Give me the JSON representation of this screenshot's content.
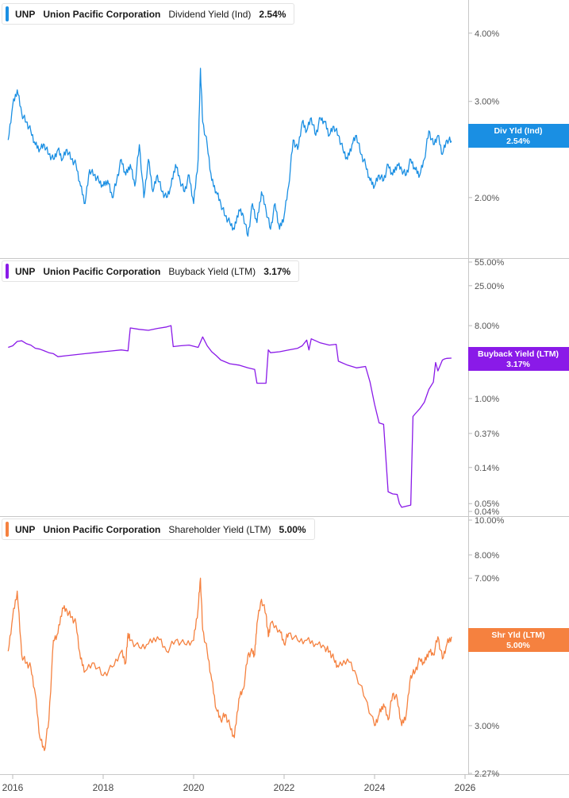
{
  "panels": [
    {
      "ticker": "UNP",
      "company": "Union Pacific Corporation",
      "metric": "Dividend Yield (Ind)",
      "value": "2.54%",
      "badge_label": "Div Yld (Ind)",
      "badge_value": "2.54%",
      "color": "#1a8fe3"
    },
    {
      "ticker": "UNP",
      "company": "Union Pacific Corporation",
      "metric": "Buyback Yield (LTM)",
      "value": "3.17%",
      "badge_label": "Buyback Yield (LTM)",
      "badge_value": "3.17%",
      "color": "#8a1ae8"
    },
    {
      "ticker": "UNP",
      "company": "Union Pacific Corporation",
      "metric": "Shareholder Yield (LTM)",
      "value": "5.00%",
      "badge_label": "Shr Yld (LTM)",
      "badge_value": "5.00%",
      "color": "#f5813f"
    }
  ],
  "x_axis": {
    "labels": [
      "2016",
      "2018",
      "2020",
      "2022",
      "2024",
      "2026"
    ]
  },
  "chart_data": [
    {
      "type": "line",
      "series": [
        {
          "name": "Dividend Yield (Ind)",
          "x": [
            2015.9,
            2016.0,
            2016.1,
            2016.2,
            2016.3,
            2016.4,
            2016.5,
            2016.6,
            2016.7,
            2016.8,
            2016.9,
            2017.0,
            2017.1,
            2017.2,
            2017.3,
            2017.4,
            2017.5,
            2017.6,
            2017.7,
            2017.8,
            2017.9,
            2018.0,
            2018.1,
            2018.2,
            2018.3,
            2018.4,
            2018.5,
            2018.6,
            2018.7,
            2018.8,
            2018.9,
            2019.0,
            2019.1,
            2019.2,
            2019.3,
            2019.4,
            2019.5,
            2019.6,
            2019.7,
            2019.8,
            2019.9,
            2020.0,
            2020.1,
            2020.15,
            2020.2,
            2020.3,
            2020.4,
            2020.5,
            2020.6,
            2020.7,
            2020.8,
            2020.9,
            2021.0,
            2021.1,
            2021.2,
            2021.3,
            2021.4,
            2021.5,
            2021.6,
            2021.7,
            2021.8,
            2021.9,
            2022.0,
            2022.1,
            2022.2,
            2022.3,
            2022.4,
            2022.5,
            2022.6,
            2022.7,
            2022.8,
            2022.9,
            2023.0,
            2023.1,
            2023.2,
            2023.3,
            2023.4,
            2023.5,
            2023.6,
            2023.7,
            2023.8,
            2023.9,
            2024.0,
            2024.1,
            2024.2,
            2024.3,
            2024.4,
            2024.5,
            2024.6,
            2024.7,
            2024.8,
            2024.9,
            2025.0,
            2025.1,
            2025.2,
            2025.3,
            2025.4,
            2025.5,
            2025.6,
            2025.7
          ],
          "y": [
            2.55,
            2.95,
            3.15,
            2.85,
            2.75,
            2.65,
            2.5,
            2.45,
            2.5,
            2.4,
            2.35,
            2.45,
            2.35,
            2.45,
            2.35,
            2.3,
            2.1,
            1.95,
            2.25,
            2.2,
            2.15,
            2.1,
            2.15,
            2.0,
            2.15,
            2.35,
            2.2,
            2.3,
            2.1,
            2.5,
            2.0,
            2.35,
            2.05,
            2.2,
            2.05,
            2.0,
            2.1,
            2.3,
            2.15,
            2.05,
            2.2,
            1.95,
            2.35,
            3.45,
            2.75,
            2.5,
            2.15,
            2.05,
            1.95,
            1.85,
            1.8,
            1.75,
            1.9,
            1.85,
            1.7,
            1.95,
            1.8,
            2.05,
            1.9,
            1.75,
            1.95,
            1.75,
            1.85,
            2.1,
            2.55,
            2.45,
            2.75,
            2.65,
            2.8,
            2.6,
            2.8,
            2.75,
            2.6,
            2.7,
            2.6,
            2.45,
            2.35,
            2.5,
            2.6,
            2.4,
            2.3,
            2.15,
            2.1,
            2.2,
            2.15,
            2.3,
            2.2,
            2.3,
            2.25,
            2.2,
            2.35,
            2.25,
            2.2,
            2.35,
            2.65,
            2.5,
            2.6,
            2.4,
            2.55,
            2.54
          ]
        }
      ],
      "y_ticks": [
        "4.00%",
        "3.00%",
        "2.00%"
      ],
      "y_scale": "log",
      "ylim": [
        1.55,
        4.6
      ]
    },
    {
      "type": "line",
      "series": [
        {
          "name": "Buyback Yield (LTM)",
          "x": [
            2015.9,
            2016.0,
            2016.1,
            2016.2,
            2016.3,
            2016.4,
            2016.5,
            2016.6,
            2016.7,
            2016.8,
            2016.9,
            2017.0,
            2017.2,
            2017.4,
            2017.6,
            2017.8,
            2018.0,
            2018.2,
            2018.4,
            2018.55,
            2018.6,
            2018.8,
            2019.0,
            2019.2,
            2019.4,
            2019.5,
            2019.55,
            2019.7,
            2019.9,
            2020.1,
            2020.2,
            2020.3,
            2020.4,
            2020.5,
            2020.6,
            2020.8,
            2021.0,
            2021.2,
            2021.35,
            2021.4,
            2021.6,
            2021.65,
            2021.7,
            2021.9,
            2022.1,
            2022.3,
            2022.4,
            2022.5,
            2022.55,
            2022.6,
            2022.8,
            2023.0,
            2023.15,
            2023.2,
            2023.4,
            2023.6,
            2023.8,
            2023.9,
            2024.0,
            2024.1,
            2024.2,
            2024.3,
            2024.4,
            2024.5,
            2024.55,
            2024.6,
            2024.8,
            2024.85,
            2024.9,
            2025.0,
            2025.1,
            2025.2,
            2025.3,
            2025.35,
            2025.4,
            2025.5,
            2025.55,
            2025.6,
            2025.7
          ],
          "y": [
            4.3,
            4.5,
            5.1,
            5.2,
            4.8,
            4.6,
            4.2,
            4.1,
            3.9,
            3.7,
            3.6,
            3.3,
            3.4,
            3.5,
            3.6,
            3.7,
            3.8,
            3.9,
            4.0,
            3.9,
            7.5,
            7.2,
            7.0,
            7.4,
            7.7,
            8.0,
            4.4,
            4.5,
            4.6,
            4.3,
            5.8,
            4.5,
            3.8,
            3.4,
            3.0,
            2.7,
            2.6,
            2.4,
            2.3,
            1.55,
            1.55,
            4.0,
            3.7,
            3.8,
            4.0,
            4.2,
            4.5,
            5.3,
            4.0,
            5.5,
            4.9,
            4.6,
            4.7,
            2.9,
            2.6,
            2.4,
            2.5,
            1.6,
            0.85,
            0.5,
            0.48,
            0.07,
            0.066,
            0.065,
            0.05,
            0.045,
            0.048,
            0.6,
            0.65,
            0.75,
            0.9,
            1.3,
            1.6,
            2.8,
            2.2,
            3.0,
            3.1,
            3.15,
            3.17
          ]
        }
      ],
      "y_ticks": [
        "55.00%",
        "25.00%",
        "8.00%",
        "1.00%",
        "0.37%",
        "0.14%",
        "0.05%",
        "0.04%"
      ],
      "y_scale": "log",
      "ylim": [
        0.035,
        55
      ]
    },
    {
      "type": "line",
      "series": [
        {
          "name": "Shareholder Yield (LTM)",
          "x": [
            2015.9,
            2016.0,
            2016.1,
            2016.2,
            2016.3,
            2016.4,
            2016.5,
            2016.6,
            2016.7,
            2016.8,
            2016.9,
            2017.0,
            2017.1,
            2017.2,
            2017.3,
            2017.4,
            2017.5,
            2017.6,
            2017.8,
            2018.0,
            2018.2,
            2018.4,
            2018.5,
            2018.55,
            2018.6,
            2018.8,
            2019.0,
            2019.2,
            2019.4,
            2019.6,
            2019.8,
            2020.0,
            2020.1,
            2020.15,
            2020.2,
            2020.3,
            2020.4,
            2020.5,
            2020.6,
            2020.7,
            2020.8,
            2020.9,
            2021.0,
            2021.1,
            2021.2,
            2021.3,
            2021.35,
            2021.4,
            2021.5,
            2021.6,
            2021.65,
            2021.7,
            2021.9,
            2022.0,
            2022.1,
            2022.3,
            2022.5,
            2022.7,
            2022.9,
            2023.0,
            2023.1,
            2023.2,
            2023.4,
            2023.6,
            2023.8,
            2024.0,
            2024.1,
            2024.2,
            2024.3,
            2024.4,
            2024.5,
            2024.6,
            2024.7,
            2024.8,
            2024.9,
            2025.0,
            2025.1,
            2025.2,
            2025.3,
            2025.4,
            2025.5,
            2025.6,
            2025.7
          ],
          "y": [
            4.6,
            5.6,
            6.5,
            4.5,
            4.3,
            4.2,
            3.6,
            2.8,
            2.6,
            3.1,
            4.9,
            5.1,
            5.9,
            5.8,
            5.6,
            5.4,
            4.4,
            4.1,
            4.3,
            4.0,
            4.2,
            4.6,
            4.3,
            5.1,
            4.9,
            4.7,
            4.8,
            5.0,
            4.6,
            4.9,
            4.8,
            4.9,
            5.9,
            7.0,
            5.2,
            4.6,
            3.9,
            3.3,
            3.1,
            3.2,
            3.0,
            2.8,
            3.5,
            3.7,
            4.5,
            4.6,
            4.5,
            5.4,
            6.2,
            5.7,
            5.0,
            5.4,
            5.2,
            4.8,
            5.1,
            4.9,
            4.9,
            4.8,
            4.7,
            4.6,
            4.4,
            4.2,
            4.4,
            4.0,
            3.5,
            3.0,
            3.2,
            3.4,
            3.1,
            3.6,
            3.5,
            3.0,
            3.2,
            4.0,
            4.1,
            4.4,
            4.3,
            4.6,
            4.5,
            5.0,
            4.4,
            4.8,
            5.0
          ]
        }
      ],
      "y_ticks": [
        "10.00%",
        "8.00%",
        "7.00%",
        "3.00%",
        "2.27%"
      ],
      "y_scale": "log",
      "ylim": [
        2.27,
        10
      ]
    }
  ]
}
